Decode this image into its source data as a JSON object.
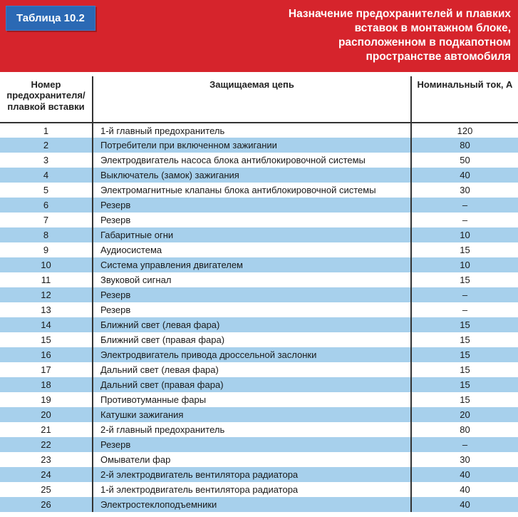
{
  "header": {
    "table_label": "Таблица 10.2",
    "title_l1": "Назначение предохранителей и плавких",
    "title_l2": "вставок в монтажном блоке,",
    "title_l3": "расположенном в подкапотном",
    "title_l4": "пространстве автомобиля"
  },
  "columns": {
    "num": "Номер предохранителя/ плавкой вставки",
    "desc": "Защищаемая цепь",
    "amp": "Номинальный ток, А"
  },
  "rows": [
    {
      "n": "1",
      "d": "1-й главный предохранитель",
      "a": "120"
    },
    {
      "n": "2",
      "d": "Потребители при включенном зажигании",
      "a": "80"
    },
    {
      "n": "3",
      "d": "Электродвигатель насоса блока антиблокировочной системы",
      "a": "50"
    },
    {
      "n": "4",
      "d": "Выключатель (замок) зажигания",
      "a": "40"
    },
    {
      "n": "5",
      "d": "Электромагнитные клапаны блока антиблокировочной системы",
      "a": "30"
    },
    {
      "n": "6",
      "d": "Резерв",
      "a": "–"
    },
    {
      "n": "7",
      "d": "Резерв",
      "a": "–"
    },
    {
      "n": "8",
      "d": "Габаритные огни",
      "a": "10"
    },
    {
      "n": "9",
      "d": "Аудиосистема",
      "a": "15"
    },
    {
      "n": "10",
      "d": "Система управления двигателем",
      "a": "10"
    },
    {
      "n": "11",
      "d": "Звуковой сигнал",
      "a": "15"
    },
    {
      "n": "12",
      "d": "Резерв",
      "a": "–"
    },
    {
      "n": "13",
      "d": "Резерв",
      "a": "–"
    },
    {
      "n": "14",
      "d": "Ближний свет (левая фара)",
      "a": "15"
    },
    {
      "n": "15",
      "d": "Ближний свет (правая фара)",
      "a": "15"
    },
    {
      "n": "16",
      "d": "Электродвигатель привода дроссельной заслонки",
      "a": "15"
    },
    {
      "n": "17",
      "d": "Дальний свет (левая фара)",
      "a": "15"
    },
    {
      "n": "18",
      "d": "Дальний свет (правая фара)",
      "a": "15"
    },
    {
      "n": "19",
      "d": "Противотуманные фары",
      "a": "15"
    },
    {
      "n": "20",
      "d": "Катушки зажигания",
      "a": "20"
    },
    {
      "n": "21",
      "d": "2-й главный предохранитель",
      "a": "80"
    },
    {
      "n": "22",
      "d": "Резерв",
      "a": "–"
    },
    {
      "n": "23",
      "d": "Омыватели фар",
      "a": "30"
    },
    {
      "n": "24",
      "d": "2-й электродвигатель вентилятора радиатора",
      "a": "40"
    },
    {
      "n": "25",
      "d": "1-й электродвигатель вентилятора радиатора",
      "a": "40"
    },
    {
      "n": "26",
      "d": "Электростеклоподъемники",
      "a": "40"
    }
  ],
  "style": {
    "header_bg": "#d6242c",
    "tag_bg": "#2b69b4",
    "row_even_bg": "#a7d0ec",
    "row_odd_bg": "#ffffff",
    "border_color": "#333333",
    "font_family": "Arial",
    "header_font_size_pt": 12,
    "body_font_size_pt": 10
  }
}
